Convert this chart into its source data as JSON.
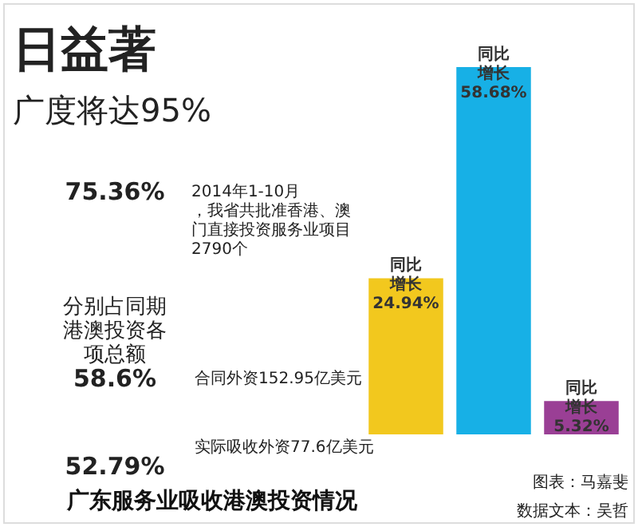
{
  "chart_data": {
    "type": "bar",
    "title": "广东服务业吸收港澳投资情况",
    "categories": [
      null,
      null,
      null
    ],
    "values": [
      24.94,
      58.68,
      5.32
    ],
    "colors": [
      "#f2c81e",
      "#17b0e6",
      "#9a3f95"
    ],
    "value_labels": [
      "同比增长24.94%",
      "同比增长58.68%",
      "同比增长5.32%"
    ],
    "annotations": [
      "日益著",
      "广度将达95%",
      "75.36%",
      "2014年1-10月，我省共批准香港、澳门直接投资服务业项目2790个",
      "分别占同期港澳投资各项总额",
      "58.6%",
      "合同外资152.95亿美元",
      "52.79%",
      "实际吸收外资77.6亿美元",
      "图表：马嘉斐",
      "数据文本：吴哲"
    ]
  }
}
